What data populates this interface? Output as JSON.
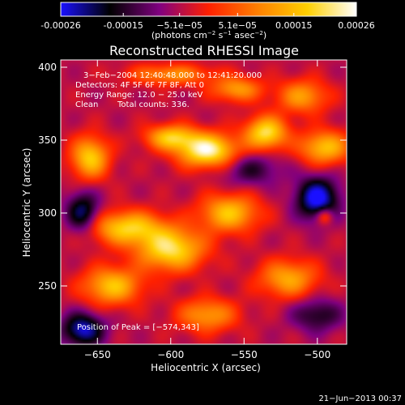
{
  "colorbar": {
    "ticks": [
      "-0.00026",
      "-0.00015",
      "−5.1e−05",
      "5.1e−05",
      "0.00015",
      "0.00026"
    ],
    "tick_values": [
      -0.00026,
      -0.00015,
      -5.1e-05,
      5.1e-05,
      0.00015,
      0.00026
    ],
    "range": [
      -0.00026,
      0.00026
    ],
    "unit_prefix": "(photons cm",
    "unit_sup1": "−2",
    "unit_mid": " s",
    "unit_sup2": "−1",
    "unit_mid2": " asec",
    "unit_sup3": "−2",
    "unit_suffix": ")",
    "colormap": [
      "#1a10ff",
      "#000000",
      "#800080",
      "#ff2000",
      "#ff8000",
      "#ffd000",
      "#ffffff"
    ]
  },
  "chart_data": {
    "type": "heatmap",
    "title": "Reconstructed RHESSI Image",
    "xlabel": "Heliocentric X (arcsec)",
    "ylabel": "Heliocentric Y (arcsec)",
    "xlim": [
      -675,
      -480
    ],
    "ylim": [
      210,
      405
    ],
    "x_ticks": [
      -650,
      -600,
      -550,
      -500
    ],
    "y_ticks": [
      250,
      300,
      350,
      400
    ],
    "x_tick_labels": [
      "−650",
      "−600",
      "−550",
      "−500"
    ],
    "y_tick_labels": [
      "250",
      "300",
      "350",
      "400"
    ],
    "annotations": {
      "time": "3−Feb−2004 12:40:48.000 to 12:41:20.000",
      "detectors": "Detectors: 4F 5F 6F 7F 8F, Att 0",
      "energy": "Energy Range: 12.0 − 25.0 keV",
      "clean_label": "Clean",
      "counts": "Total counts: 336.",
      "peak": "Position of Peak = [−574,343]"
    },
    "peak": {
      "x": -574,
      "y": 343
    },
    "sources": [
      {
        "x": -575,
        "y": 343,
        "value": 1.0,
        "sx": 14,
        "sy": 8
      },
      {
        "x": -600,
        "y": 352,
        "value": 0.7,
        "sx": 12,
        "sy": 6
      },
      {
        "x": -655,
        "y": 338,
        "value": 0.75,
        "sx": 9,
        "sy": 10
      },
      {
        "x": -630,
        "y": 290,
        "value": 0.75,
        "sx": 18,
        "sy": 8
      },
      {
        "x": -600,
        "y": 275,
        "value": 0.85,
        "sx": 16,
        "sy": 10
      },
      {
        "x": -560,
        "y": 300,
        "value": 0.7,
        "sx": 14,
        "sy": 9
      },
      {
        "x": -535,
        "y": 355,
        "value": 0.85,
        "sx": 10,
        "sy": 8
      },
      {
        "x": -495,
        "y": 345,
        "value": 0.7,
        "sx": 12,
        "sy": 8
      },
      {
        "x": -510,
        "y": 380,
        "value": 0.55,
        "sx": 12,
        "sy": 8
      },
      {
        "x": -555,
        "y": 385,
        "value": 0.55,
        "sx": 12,
        "sy": 6
      },
      {
        "x": -640,
        "y": 250,
        "value": 0.7,
        "sx": 14,
        "sy": 9
      },
      {
        "x": -520,
        "y": 255,
        "value": 0.6,
        "sx": 14,
        "sy": 9
      },
      {
        "x": -575,
        "y": 230,
        "value": 0.55,
        "sx": 14,
        "sy": 8
      },
      {
        "x": -600,
        "y": 395,
        "value": 0.5,
        "sx": 20,
        "sy": 5
      },
      {
        "x": -495,
        "y": 298,
        "value": 0.45,
        "sx": 4,
        "sy": 4
      },
      {
        "x": -660,
        "y": 300,
        "value": -0.6,
        "sx": 8,
        "sy": 10
      },
      {
        "x": -500,
        "y": 310,
        "value": -0.8,
        "sx": 10,
        "sy": 10
      },
      {
        "x": -660,
        "y": 220,
        "value": -0.7,
        "sx": 10,
        "sy": 8
      },
      {
        "x": -545,
        "y": 330,
        "value": -0.35,
        "sx": 14,
        "sy": 8
      },
      {
        "x": -500,
        "y": 230,
        "value": -0.4,
        "sx": 12,
        "sy": 8
      }
    ]
  },
  "footer": {
    "date": "21−Jun−2013 00:37"
  }
}
